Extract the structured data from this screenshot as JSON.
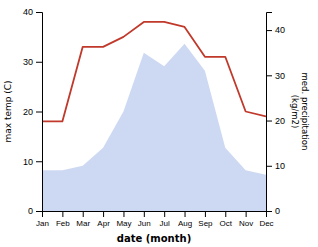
{
  "chart_data": {
    "type": "line",
    "xlabel": "date (month)",
    "ylabel": "max temp (C)",
    "y2label": "med. precipitation\n(kg/m2)",
    "categories": [
      "Jan",
      "Feb",
      "Mar",
      "Apr",
      "May",
      "Jun",
      "Jul",
      "Aug",
      "Sep",
      "Oct",
      "Nov",
      "Dec"
    ],
    "series": [
      {
        "type": "area",
        "axis": "y2",
        "color": "#b8c9ec",
        "values": [
          9,
          9,
          10,
          14,
          22,
          35,
          32,
          37,
          31,
          14,
          9,
          8
        ]
      },
      {
        "type": "line",
        "color": "#c0392b",
        "values": [
          18,
          18,
          33,
          33,
          35,
          38,
          38,
          37,
          31,
          31,
          20,
          19
        ]
      }
    ],
    "ylim": [
      0,
      40
    ],
    "yticks": [
      0,
      10,
      20,
      30,
      40
    ],
    "y2lim": [
      0,
      44
    ],
    "y2ticks": [
      0,
      10,
      20,
      30,
      40
    ]
  }
}
